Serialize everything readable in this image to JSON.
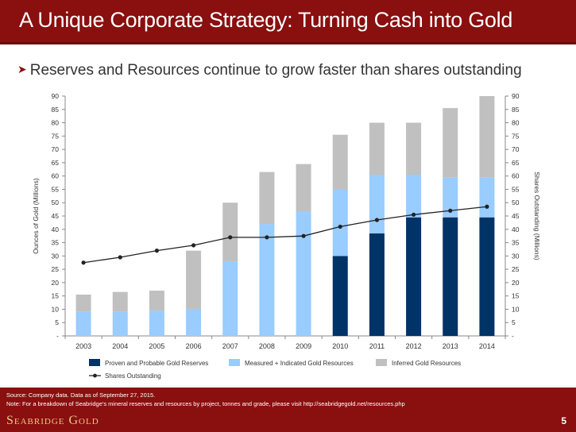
{
  "slide": {
    "title": "A Unique Corporate Strategy: Turning Cash into Gold",
    "bullet": "Reserves and Resources continue to grow faster than shares outstanding",
    "source": "Source: Company data.  Data as of September 27, 2015.",
    "note": "Note: For a breakdown of Seabridge's mineral reserves and resources by project, tonnes and grade, please visit http://seabridgegold.net/resources.php",
    "brand": "Seabridge Gold",
    "page_number": "5"
  },
  "colors": {
    "brand_red": "#8a0f0f",
    "proven": "#003366",
    "measured": "#99ccff",
    "inferred": "#c0c0c0",
    "shares_line": "#222222"
  },
  "chart_data": {
    "type": "bar",
    "stacked": true,
    "categories": [
      "2003",
      "2004",
      "2005",
      "2006",
      "2007",
      "2008",
      "2009",
      "2010",
      "2011",
      "2012",
      "2013",
      "2014"
    ],
    "series": [
      {
        "name": "Proven and Probable Gold Reserves",
        "type": "bar",
        "axis": "left",
        "color": "#003366",
        "values": [
          0,
          0,
          0,
          0,
          0,
          0,
          0,
          30,
          38.5,
          44.5,
          44.5,
          44.5
        ]
      },
      {
        "name": "Measured + Indicated Gold Resources",
        "type": "bar",
        "axis": "left",
        "color": "#99ccff",
        "values": [
          9,
          9,
          9.5,
          10,
          28,
          42,
          46.5,
          25,
          22,
          16,
          15,
          15
        ]
      },
      {
        "name": "Inferred Gold Resources",
        "type": "bar",
        "axis": "left",
        "color": "#c0c0c0",
        "values": [
          6.5,
          7.5,
          7.5,
          22,
          22,
          19.5,
          18,
          20.5,
          19.5,
          19.5,
          26,
          30.5
        ]
      },
      {
        "name": "Shares Outstanding",
        "type": "line",
        "axis": "right",
        "color": "#222222",
        "values": [
          27.5,
          29.5,
          32,
          34,
          37,
          37,
          37.5,
          41,
          43.5,
          45.5,
          47,
          48.5
        ]
      }
    ],
    "ylabel": "Ounces of Gold (Millions)",
    "y2label": "Shares Outstanding (Millions)",
    "ylim": [
      0,
      90
    ],
    "y2lim": [
      0,
      90
    ],
    "yticks": [
      "-",
      "5",
      "10",
      "15",
      "20",
      "25",
      "30",
      "35",
      "40",
      "45",
      "50",
      "55",
      "60",
      "65",
      "70",
      "75",
      "80",
      "85",
      "90"
    ],
    "legend_position": "bottom",
    "grid": false
  }
}
